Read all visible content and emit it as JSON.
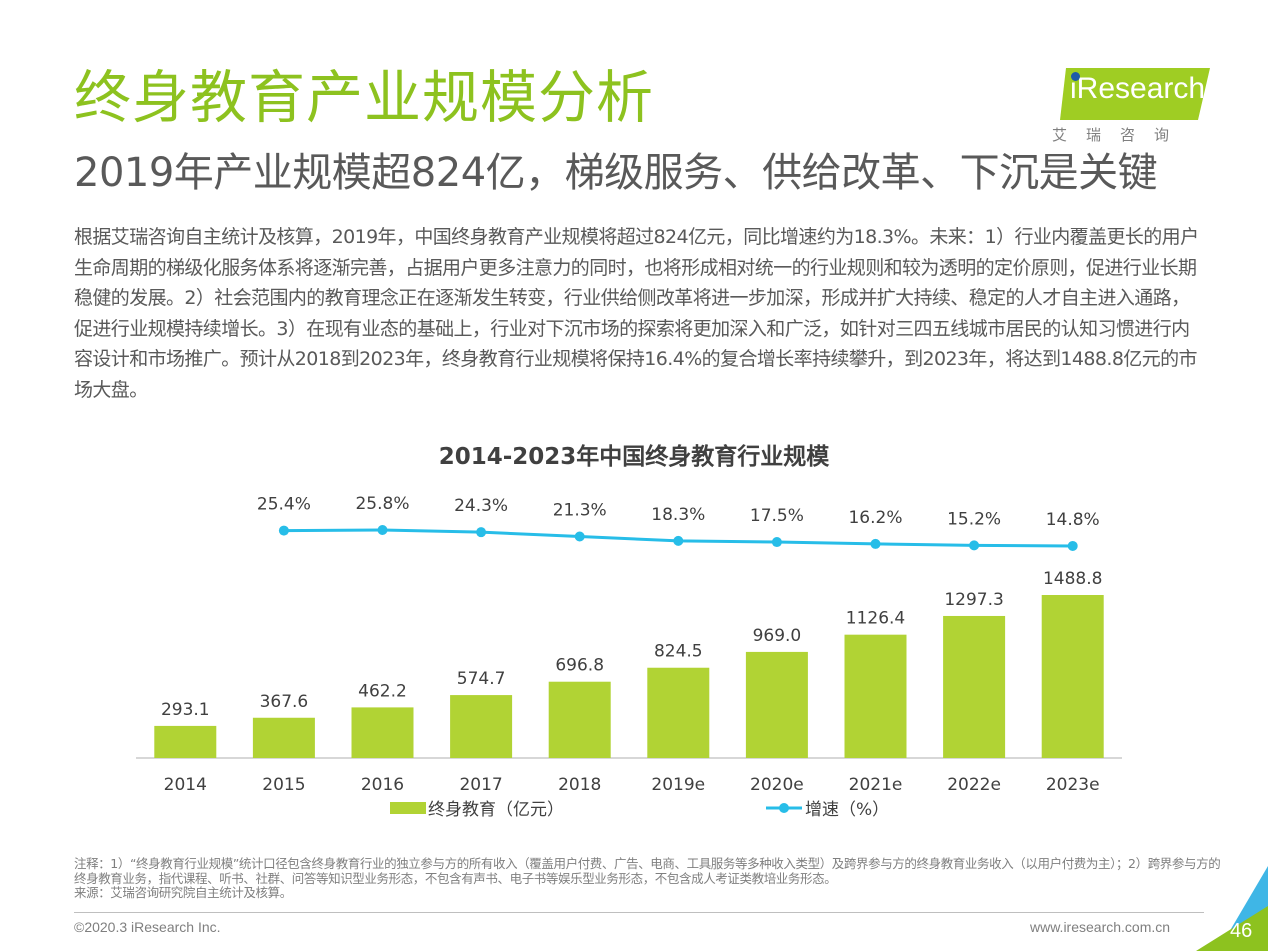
{
  "header": {
    "title": "终身教育产业规模分析",
    "subtitle": "2019年产业规模超824亿，梯级服务、供给改革、下沉是关键"
  },
  "logo": {
    "text": "iResearch",
    "cn": "艾瑞咨询"
  },
  "body_text": "根据艾瑞咨询自主统计及核算，2019年，中国终身教育产业规模将超过824亿元，同比增速约为18.3%。未来：1）行业内覆盖更长的用户生命周期的梯级化服务体系将逐渐完善，占据用户更多注意力的同时，也将形成相对统一的行业规则和较为透明的定价原则，促进行业长期稳健的发展。2）社会范围内的教育理念正在逐渐发生转变，行业供给侧改革将进一步加深，形成并扩大持续、稳定的人才自主进入通路，促进行业规模持续增长。3）在现有业态的基础上，行业对下沉市场的探索将更加深入和广泛，如针对三四五线城市居民的认知习惯进行内容设计和市场推广。预计从2018到2023年，终身教育行业规模将保持16.4%的复合增长率持续攀升，到2023年，将达到1488.8亿元的市场大盘。",
  "chart_data": {
    "type": "bar",
    "title": "2014-2023年中国终身教育行业规模",
    "categories": [
      "2014",
      "2015",
      "2016",
      "2017",
      "2018",
      "2019e",
      "2020e",
      "2021e",
      "2022e",
      "2023e"
    ],
    "series": [
      {
        "name": "终身教育（亿元）",
        "type": "bar",
        "values": [
          293.1,
          367.6,
          462.2,
          574.7,
          696.8,
          824.5,
          969.0,
          1126.4,
          1297.3,
          1488.8
        ],
        "labels": [
          "293.1",
          "367.6",
          "462.2",
          "574.7",
          "696.8",
          "824.5",
          "969.0",
          "1126.4",
          "1297.3",
          "1488.8"
        ]
      },
      {
        "name": "增速（%）",
        "type": "line",
        "x": [
          "2015",
          "2016",
          "2017",
          "2018",
          "2019e",
          "2020e",
          "2021e",
          "2022e",
          "2023e"
        ],
        "values": [
          25.4,
          25.8,
          24.3,
          21.3,
          18.3,
          17.5,
          16.2,
          15.2,
          14.8
        ],
        "labels": [
          "25.4%",
          "25.8%",
          "24.3%",
          "21.3%",
          "18.3%",
          "17.5%",
          "16.2%",
          "15.2%",
          "14.8%"
        ]
      }
    ],
    "legend_position": "bottom",
    "grid": false,
    "colors": {
      "bar": "#b1d334",
      "line": "#27bde8",
      "text": "#404040",
      "axis": "#bfbfbf"
    }
  },
  "notes": {
    "note": "注释：1）“终身教育行业规模”统计口径包含终身教育行业的独立参与方的所有收入（覆盖用户付费、广告、电商、工具服务等多种收入类型）及跨界参与方的终身教育业务收入（以用户付费为主）；2）跨界参与方的终身教育业务，指代课程、听书、社群、问答等知识型业务形态，不包含有声书、电子书等娱乐型业务形态，不包含成人考证类教培业务形态。",
    "source": "来源：艾瑞咨询研究院自主统计及核算。"
  },
  "footer": {
    "copyright": "©2020.3 iResearch Inc.",
    "website": "www.iresearch.com.cn",
    "page": "46"
  }
}
